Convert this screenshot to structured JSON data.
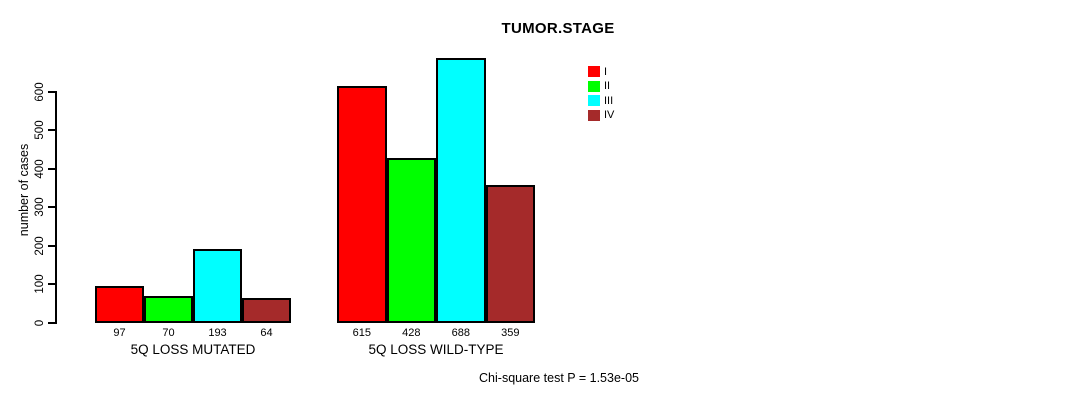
{
  "chart_data": {
    "type": "bar",
    "title": "TUMOR.STAGE",
    "ylabel": "number of cases",
    "xlabel": "",
    "ylim": [
      0,
      600
    ],
    "yticks": [
      0,
      100,
      200,
      300,
      400,
      500,
      600
    ],
    "grid": false,
    "legend_position": "top-right",
    "series_labels": [
      "I",
      "II",
      "III",
      "IV"
    ],
    "series_colors": [
      "#ff0000",
      "#00ff00",
      "#00ffff",
      "#a52a2a"
    ],
    "groups": [
      {
        "label": "5Q LOSS MUTATED",
        "values": [
          97,
          70,
          193,
          64
        ]
      },
      {
        "label": "5Q LOSS WILD-TYPE",
        "values": [
          615,
          428,
          688,
          359
        ]
      }
    ],
    "annotation": "Chi-square test P = 1.53e-05"
  }
}
